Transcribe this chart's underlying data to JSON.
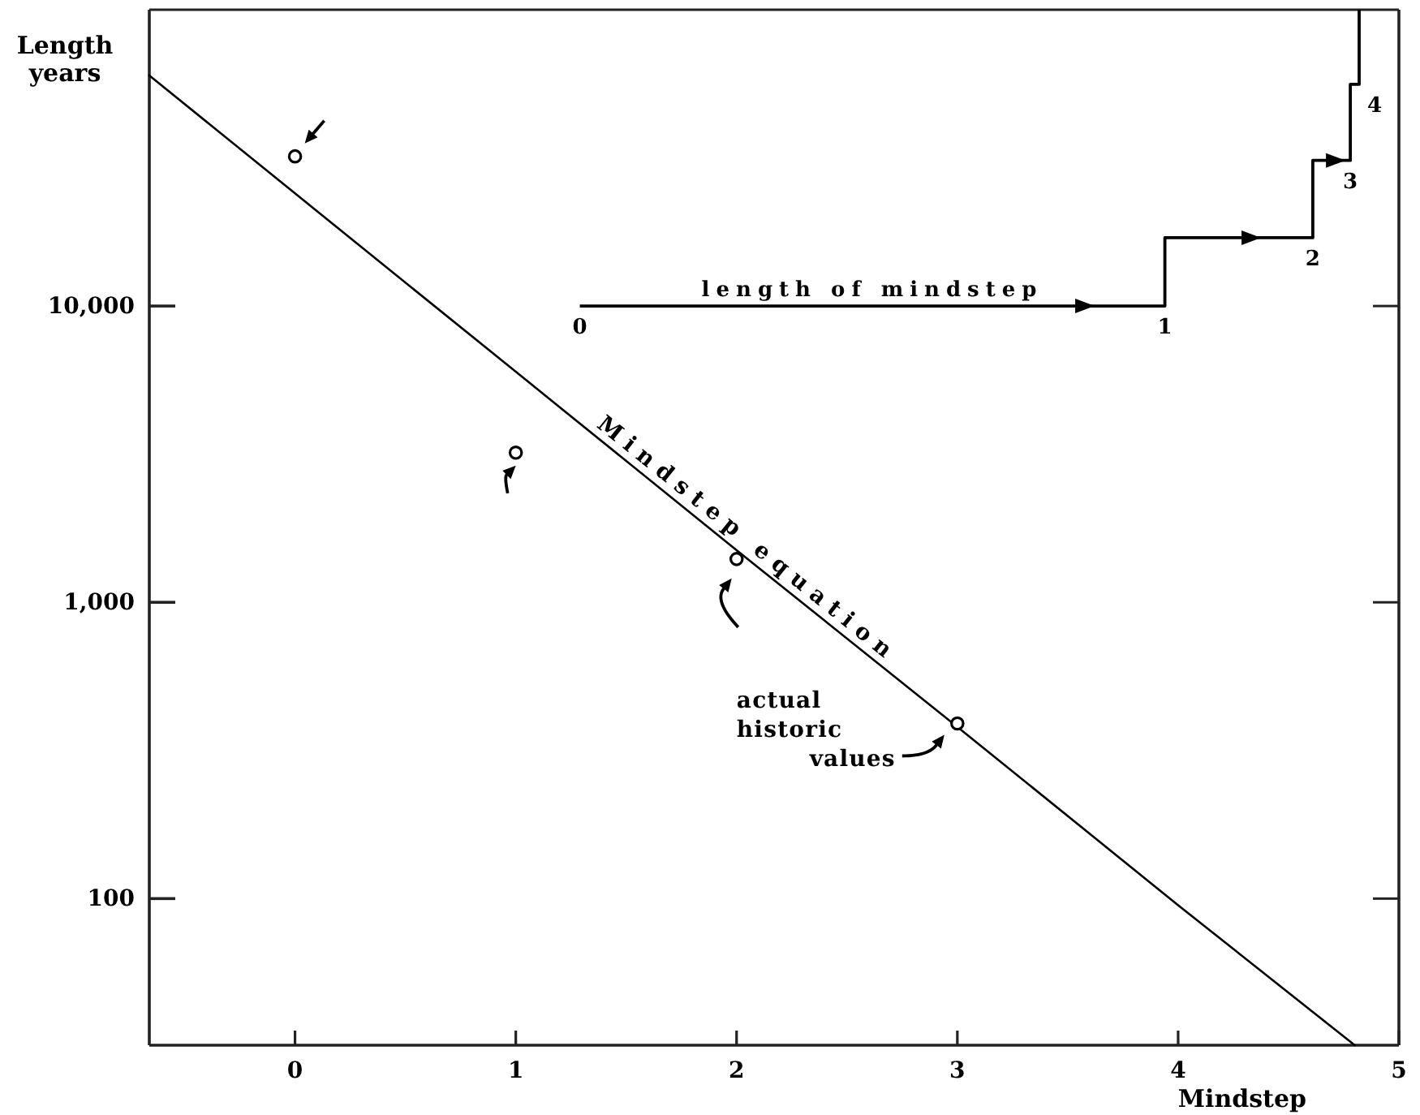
{
  "chart_data": {
    "type": "line",
    "xlabel": "Mindstep",
    "ylabel": "Length years",
    "log": "y",
    "xlim": [
      -0.66,
      5
    ],
    "ylim": [
      32,
      100000
    ],
    "xticks": [
      0,
      1,
      2,
      3,
      4,
      5
    ],
    "yticks": [
      100,
      {
        "value": 1000,
        "label": "1,000"
      },
      {
        "value": 10000,
        "label": "10,000"
      }
    ],
    "series": [
      {
        "name": "Mindstep equation",
        "color": "#000000",
        "x": [
          -0.66,
          0,
          1,
          2,
          3,
          4,
          4.8
        ],
        "values": [
          60000,
          24000,
          6000,
          1500,
          380,
          95,
          32
        ]
      },
      {
        "type": "scatter",
        "color": "#000000",
        "marker": "circle",
        "x": [
          0,
          1,
          2,
          3
        ],
        "values": [
          32000,
          3200,
          1400,
          390
        ]
      },
      {
        "type": "step",
        "name": "length of mindstep",
        "color": "#000000",
        "x": [
          1.29,
          3.94,
          4.61,
          4.78,
          4.82
        ],
        "values": [
          10000,
          17000,
          31000,
          56000,
          100000
        ]
      }
    ],
    "annotations": [
      {
        "text": "0",
        "x": 1.29,
        "y": 10000
      },
      {
        "text": "1",
        "x": 3.94,
        "y": 10000
      },
      {
        "text": "2",
        "x": 4.61,
        "y": 17000
      },
      {
        "text": "3",
        "x": 4.78,
        "y": 31000
      },
      {
        "text": "4",
        "x": 4.82,
        "y": 56000
      },
      {
        "text": "actual historic values",
        "x": 3,
        "y": 390
      }
    ]
  }
}
